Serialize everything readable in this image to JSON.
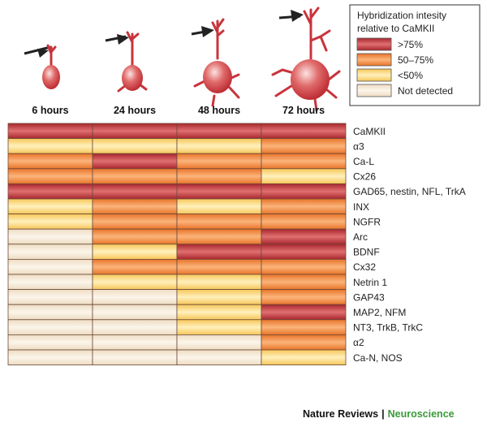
{
  "chart_data": {
    "type": "heatmap",
    "title": "",
    "time_points": [
      "6 hours",
      "24 hours",
      "48 hours",
      "72 hours"
    ],
    "legend": {
      "title_lines": [
        "Hybridization intesity",
        "relative to CaMKII"
      ],
      "placement": "top-right",
      "levels": [
        {
          "key": "gt75",
          "label": ">75%",
          "color": "#c8343c"
        },
        {
          "key": "50to75",
          "label": "50–75%",
          "color": "#f08a3e"
        },
        {
          "key": "lt50",
          "label": "<50%",
          "color": "#fbd77a"
        },
        {
          "key": "nd",
          "label": "Not detected",
          "color": "#f6ead8"
        }
      ]
    },
    "rows": [
      {
        "gene": "CaMKII",
        "levels": [
          "gt75",
          "gt75",
          "gt75",
          "gt75"
        ]
      },
      {
        "gene": "α3",
        "levels": [
          "lt50",
          "lt50",
          "lt50",
          "50to75"
        ]
      },
      {
        "gene": "Ca-L",
        "levels": [
          "50to75",
          "gt75",
          "50to75",
          "50to75"
        ]
      },
      {
        "gene": "Cx26",
        "levels": [
          "50to75",
          "50to75",
          "50to75",
          "lt50"
        ]
      },
      {
        "gene": "GAD65, nestin, NFL, TrkA",
        "levels": [
          "gt75",
          "gt75",
          "gt75",
          "gt75"
        ]
      },
      {
        "gene": "INX",
        "levels": [
          "lt50",
          "50to75",
          "lt50",
          "50to75"
        ]
      },
      {
        "gene": "NGFR",
        "levels": [
          "lt50",
          "50to75",
          "50to75",
          "50to75"
        ]
      },
      {
        "gene": "Arc",
        "levels": [
          "nd",
          "50to75",
          "50to75",
          "gt75"
        ]
      },
      {
        "gene": "BDNF",
        "levels": [
          "nd",
          "lt50",
          "gt75",
          "gt75"
        ]
      },
      {
        "gene": "Cx32",
        "levels": [
          "nd",
          "50to75",
          "50to75",
          "50to75"
        ]
      },
      {
        "gene": "Netrin 1",
        "levels": [
          "nd",
          "lt50",
          "lt50",
          "50to75"
        ]
      },
      {
        "gene": "GAP43",
        "levels": [
          "nd",
          "nd",
          "lt50",
          "50to75"
        ]
      },
      {
        "gene": "MAP2, NFM",
        "levels": [
          "nd",
          "nd",
          "lt50",
          "gt75"
        ]
      },
      {
        "gene": "NT3, TrkB, TrkC",
        "levels": [
          "nd",
          "nd",
          "lt50",
          "50to75"
        ]
      },
      {
        "gene": "α2",
        "levels": [
          "nd",
          "nd",
          "nd",
          "50to75"
        ]
      },
      {
        "gene": "Ca-N, NOS",
        "levels": [
          "nd",
          "nd",
          "nd",
          "lt50"
        ]
      }
    ]
  },
  "footer": {
    "journal": "Nature Reviews",
    "separator": "|",
    "section": "Neuroscience"
  }
}
